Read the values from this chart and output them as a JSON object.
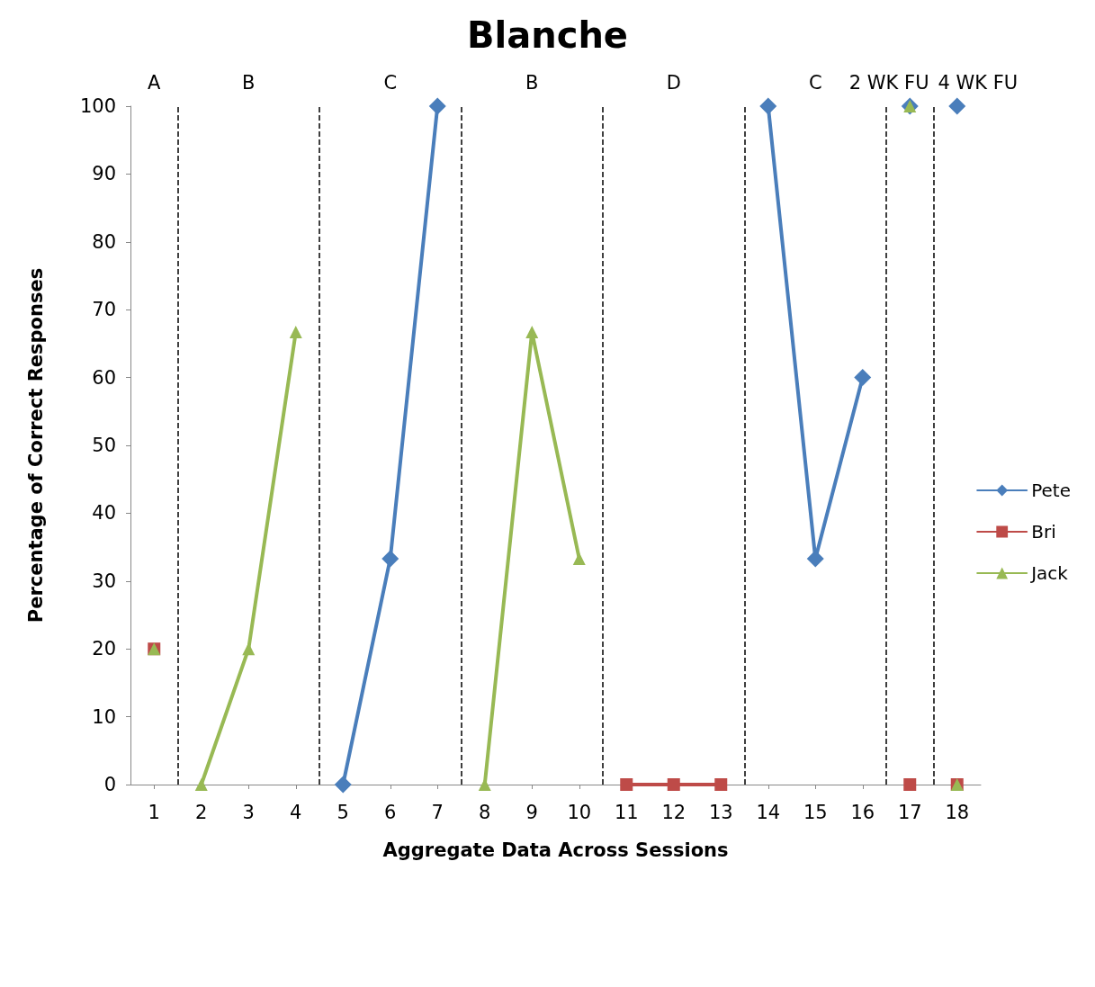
{
  "chart_data": {
    "type": "line",
    "title": "Blanche",
    "xlabel": "Aggregate Data Across Sessions",
    "ylabel": "Percentage of Correct Responses",
    "x": [
      2,
      3,
      4,
      5,
      6,
      7,
      8,
      9,
      10,
      11,
      12,
      13,
      14,
      15,
      16
    ],
    "xlim": [
      0.5,
      18.5
    ],
    "xticks": [
      1,
      2,
      3,
      4,
      5,
      6,
      7,
      8,
      9,
      10,
      11,
      12,
      13,
      14,
      15,
      16,
      17,
      18
    ],
    "ylim": [
      0,
      100
    ],
    "yticks": [
      0,
      10,
      20,
      30,
      40,
      50,
      60,
      70,
      80,
      90,
      100
    ],
    "series": [
      {
        "name": "Pete",
        "color": "#4a7ebb",
        "marker": "diamond",
        "values": [
          null,
          null,
          null,
          0,
          33.3,
          100,
          null,
          null,
          null,
          null,
          null,
          null,
          100,
          33.3,
          60
        ]
      },
      {
        "name": "Bri",
        "color": "#be4b48",
        "marker": "square",
        "values": [
          null,
          null,
          null,
          null,
          null,
          null,
          null,
          null,
          null,
          0,
          0,
          0,
          null,
          null,
          null
        ]
      },
      {
        "name": "Jack",
        "color": "#98b954",
        "marker": "triangle",
        "values": [
          0,
          20,
          66.7,
          null,
          null,
          null,
          0,
          66.7,
          33.3,
          null,
          null,
          null,
          null,
          null,
          null
        ]
      },
      {
        "type": "scatter",
        "color": "#4a7ebb",
        "marker": "diamond",
        "x": [
          17,
          18
        ],
        "values": [
          100,
          100
        ]
      },
      {
        "type": "scatter",
        "color": "#be4b48",
        "marker": "square",
        "x": [
          1,
          17,
          18
        ],
        "values": [
          20,
          0,
          0
        ]
      },
      {
        "type": "scatter",
        "color": "#98b954",
        "marker": "triangle",
        "x": [
          1,
          17,
          18
        ],
        "values": [
          20,
          100,
          0
        ]
      }
    ],
    "ref_lines": [
      {
        "axis": "x",
        "value": 1.5,
        "line_style": "dashed",
        "color": "#000000"
      },
      {
        "axis": "x",
        "value": 4.5,
        "line_style": "dashed",
        "color": "#000000"
      },
      {
        "axis": "x",
        "value": 7.5,
        "line_style": "dashed",
        "color": "#000000"
      },
      {
        "axis": "x",
        "value": 10.5,
        "line_style": "dashed",
        "color": "#000000"
      },
      {
        "axis": "x",
        "value": 13.5,
        "line_style": "dashed",
        "color": "#000000"
      },
      {
        "axis": "x",
        "value": 16.5,
        "line_style": "dashed",
        "color": "#000000"
      },
      {
        "axis": "x",
        "value": 17.5,
        "line_style": "dashed",
        "color": "#000000"
      }
    ],
    "annotations": [
      "A",
      "B",
      "C",
      "B",
      "D",
      "C",
      "2 WK FU",
      "4 WK FU"
    ],
    "grid": false,
    "legend": "right",
    "line_style": "solid"
  }
}
